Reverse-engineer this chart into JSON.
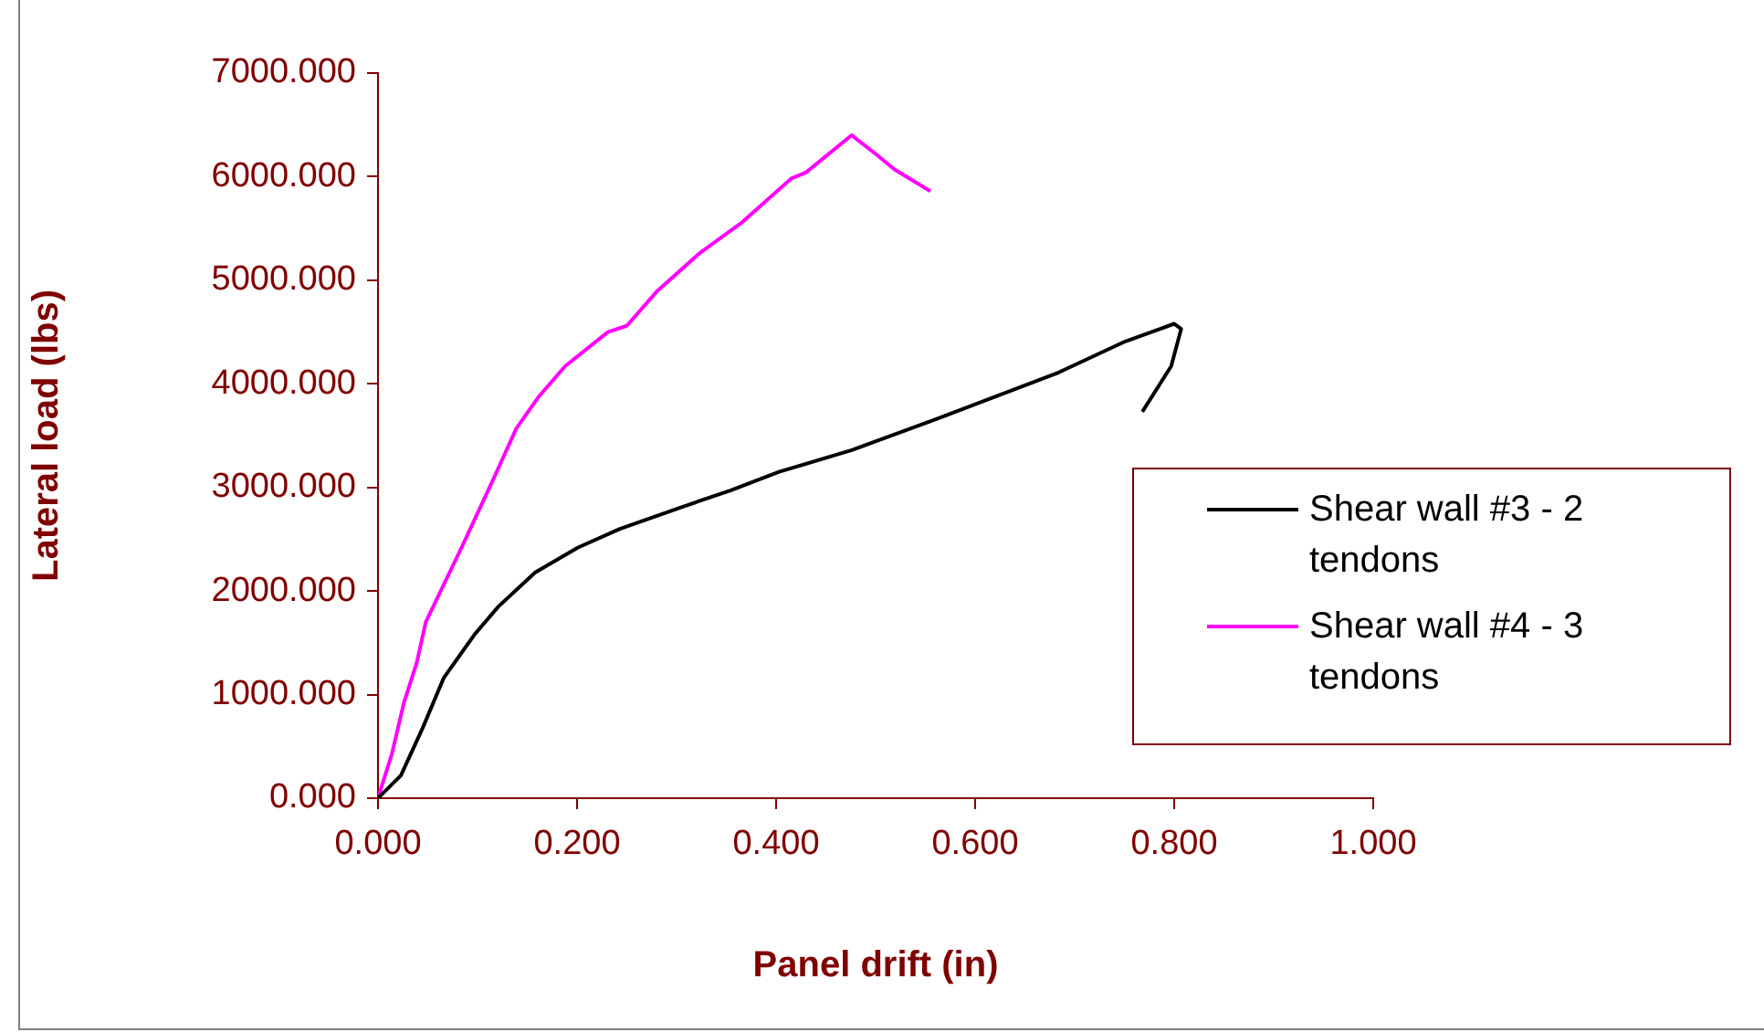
{
  "chart_data": {
    "type": "line",
    "xlabel": "Panel drift (in)",
    "ylabel": "Lateral load (lbs)",
    "xlim": [
      0,
      1
    ],
    "xticks": [
      {
        "value": 0,
        "label": "0.000"
      },
      {
        "value": 0.2,
        "label": "0.200"
      },
      {
        "value": 0.4,
        "label": "0.400"
      },
      {
        "value": 0.6,
        "label": "0.600"
      },
      {
        "value": 0.8,
        "label": "0.800"
      },
      {
        "value": 1,
        "label": "1.000"
      }
    ],
    "ylim": [
      0,
      7000
    ],
    "yticks": [
      {
        "value": 0,
        "label": "0.000"
      },
      {
        "value": 1000,
        "label": "1000.000"
      },
      {
        "value": 2000,
        "label": "2000.000"
      },
      {
        "value": 3000,
        "label": "3000.000"
      },
      {
        "value": 4000,
        "label": "4000.000"
      },
      {
        "value": 5000,
        "label": "5000.000"
      },
      {
        "value": 6000,
        "label": "6000.000"
      },
      {
        "value": 7000,
        "label": "7000.000"
      }
    ],
    "grid": false,
    "legend": "right",
    "marker": "none",
    "line_style": "solid",
    "series": [
      {
        "name": "Shear wall #3 - 2 tendons",
        "color": "#000000",
        "x": [
          0,
          0.023,
          0.045,
          0.066,
          0.097,
          0.121,
          0.158,
          0.201,
          0.243,
          0.305,
          0.354,
          0.403,
          0.476,
          0.561,
          0.684,
          0.751,
          0.8,
          0.807,
          0.797,
          0.768
        ],
        "values": [
          0,
          220,
          680,
          1160,
          1580,
          1850,
          2180,
          2420,
          2600,
          2810,
          2970,
          3150,
          3360,
          3660,
          4110,
          4410,
          4580,
          4530,
          4170,
          3730
        ]
      },
      {
        "name": "Shear wall #4 - 3 tendons",
        "color": "#ff00ff",
        "x": [
          0,
          0.014,
          0.026,
          0.039,
          0.048,
          0.063,
          0.084,
          0.115,
          0.139,
          0.161,
          0.188,
          0.231,
          0.25,
          0.28,
          0.323,
          0.366,
          0.415,
          0.43,
          0.476,
          0.5,
          0.519,
          0.555
        ],
        "values": [
          0,
          430,
          920,
          1310,
          1700,
          2000,
          2420,
          3060,
          3570,
          3870,
          4170,
          4500,
          4560,
          4890,
          5260,
          5560,
          5980,
          6040,
          6400,
          6220,
          6070,
          5860
        ]
      }
    ]
  }
}
